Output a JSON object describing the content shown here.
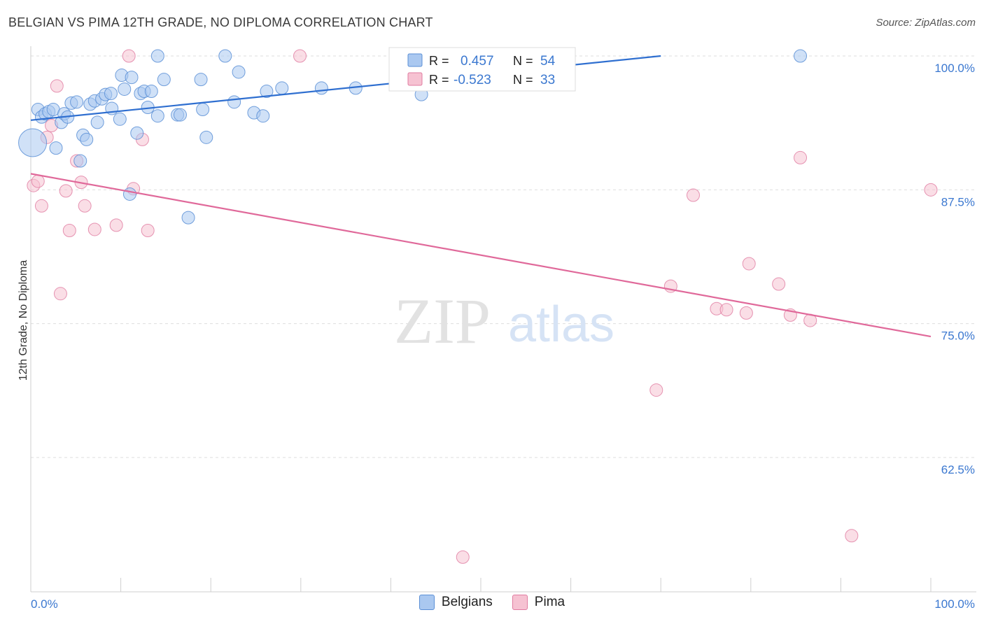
{
  "title": "BELGIAN VS PIMA 12TH GRADE, NO DIPLOMA CORRELATION CHART",
  "source": "Source: ZipAtlas.com",
  "watermark": {
    "zip": "ZIP",
    "atlas": "atlas"
  },
  "colors": {
    "belgians_fill": "#aac8f0",
    "belgians_stroke": "#5b8fd6",
    "belgians_line": "#2f6fd0",
    "pima_fill": "#f6c2d2",
    "pima_stroke": "#e07ba0",
    "pima_line": "#e0699a",
    "tick_text": "#3b78d0",
    "grid": "#dddddd"
  },
  "legend": {
    "rows": [
      {
        "r_label": "R =",
        "r_value": "0.457",
        "n_label": "N =",
        "n_value": "54"
      },
      {
        "r_label": "R =",
        "r_value": "-0.523",
        "n_label": "N =",
        "n_value": "33"
      }
    ]
  },
  "bottom_legend": [
    "Belgians",
    "Pima"
  ],
  "chart_data": {
    "type": "scatter",
    "title": "BELGIAN VS PIMA 12TH GRADE, NO DIPLOMA CORRELATION CHART",
    "xlabel": "",
    "ylabel": "12th Grade, No Diploma",
    "xlim": [
      0,
      100
    ],
    "ylim": [
      52,
      102.5
    ],
    "x_tick_labels": [
      "0.0%",
      "100.0%"
    ],
    "y_ticks": [
      62.5,
      75.0,
      87.5,
      100.0
    ],
    "y_tick_labels": [
      "62.5%",
      "75.0%",
      "87.5%",
      "100.0%"
    ],
    "grid": true,
    "legend_position": "top-center",
    "series": [
      {
        "name": "Belgians",
        "r": 0.457,
        "n": 54,
        "trend": {
          "x": [
            0,
            70
          ],
          "y": [
            94.0,
            100.0
          ]
        },
        "points": [
          {
            "x": 0.2,
            "y": 91.9,
            "big": true
          },
          {
            "x": 0.8,
            "y": 95.0
          },
          {
            "x": 1.2,
            "y": 94.3
          },
          {
            "x": 1.6,
            "y": 94.6
          },
          {
            "x": 2.0,
            "y": 94.8
          },
          {
            "x": 2.5,
            "y": 95.0
          },
          {
            "x": 2.8,
            "y": 91.4
          },
          {
            "x": 3.4,
            "y": 93.8
          },
          {
            "x": 3.7,
            "y": 94.6
          },
          {
            "x": 4.1,
            "y": 94.3
          },
          {
            "x": 4.5,
            "y": 95.6
          },
          {
            "x": 5.1,
            "y": 95.7
          },
          {
            "x": 5.5,
            "y": 90.2
          },
          {
            "x": 5.8,
            "y": 92.6
          },
          {
            "x": 6.2,
            "y": 92.2
          },
          {
            "x": 6.6,
            "y": 95.5
          },
          {
            "x": 7.1,
            "y": 95.8
          },
          {
            "x": 7.4,
            "y": 93.8
          },
          {
            "x": 7.9,
            "y": 96.0
          },
          {
            "x": 8.3,
            "y": 96.4
          },
          {
            "x": 8.9,
            "y": 96.5
          },
          {
            "x": 9.0,
            "y": 95.1
          },
          {
            "x": 9.9,
            "y": 94.1
          },
          {
            "x": 10.1,
            "y": 98.2
          },
          {
            "x": 10.4,
            "y": 96.9
          },
          {
            "x": 11.0,
            "y": 87.1
          },
          {
            "x": 11.2,
            "y": 98.0
          },
          {
            "x": 11.8,
            "y": 92.8
          },
          {
            "x": 12.2,
            "y": 96.5
          },
          {
            "x": 12.6,
            "y": 96.7
          },
          {
            "x": 13.0,
            "y": 95.2
          },
          {
            "x": 13.4,
            "y": 96.7
          },
          {
            "x": 14.1,
            "y": 94.4
          },
          {
            "x": 14.1,
            "y": 100.0
          },
          {
            "x": 14.8,
            "y": 97.8
          },
          {
            "x": 16.3,
            "y": 94.5
          },
          {
            "x": 16.6,
            "y": 94.5
          },
          {
            "x": 17.5,
            "y": 84.9
          },
          {
            "x": 18.9,
            "y": 97.8
          },
          {
            "x": 19.1,
            "y": 95.0
          },
          {
            "x": 19.5,
            "y": 92.4
          },
          {
            "x": 21.6,
            "y": 100.0
          },
          {
            "x": 22.6,
            "y": 95.7
          },
          {
            "x": 23.1,
            "y": 98.5
          },
          {
            "x": 24.8,
            "y": 94.7
          },
          {
            "x": 25.8,
            "y": 94.4
          },
          {
            "x": 26.2,
            "y": 96.7
          },
          {
            "x": 27.9,
            "y": 97.0
          },
          {
            "x": 32.3,
            "y": 97.0
          },
          {
            "x": 36.1,
            "y": 97.0
          },
          {
            "x": 43.4,
            "y": 96.4
          },
          {
            "x": 48.7,
            "y": 100.0
          },
          {
            "x": 51.4,
            "y": 100.0
          },
          {
            "x": 85.5,
            "y": 100.0
          }
        ]
      },
      {
        "name": "Pima",
        "r": -0.523,
        "n": 33,
        "trend": {
          "x": [
            0,
            100
          ],
          "y": [
            89.0,
            73.8
          ]
        },
        "points": [
          {
            "x": 0.3,
            "y": 87.9
          },
          {
            "x": 0.8,
            "y": 88.3
          },
          {
            "x": 1.2,
            "y": 86.0
          },
          {
            "x": 1.8,
            "y": 92.4
          },
          {
            "x": 2.3,
            "y": 93.5
          },
          {
            "x": 2.9,
            "y": 97.2
          },
          {
            "x": 3.3,
            "y": 77.8
          },
          {
            "x": 3.9,
            "y": 87.4
          },
          {
            "x": 4.3,
            "y": 83.7
          },
          {
            "x": 5.1,
            "y": 90.2
          },
          {
            "x": 5.6,
            "y": 88.2
          },
          {
            "x": 6.0,
            "y": 86.0
          },
          {
            "x": 7.1,
            "y": 83.8
          },
          {
            "x": 9.5,
            "y": 84.2
          },
          {
            "x": 10.9,
            "y": 100.0
          },
          {
            "x": 11.4,
            "y": 87.6
          },
          {
            "x": 12.4,
            "y": 92.2
          },
          {
            "x": 13.0,
            "y": 83.7
          },
          {
            "x": 29.9,
            "y": 100.0
          },
          {
            "x": 48.0,
            "y": 53.2
          },
          {
            "x": 69.5,
            "y": 68.8
          },
          {
            "x": 71.1,
            "y": 78.5
          },
          {
            "x": 73.6,
            "y": 87.0
          },
          {
            "x": 76.2,
            "y": 76.4
          },
          {
            "x": 77.3,
            "y": 76.3
          },
          {
            "x": 79.5,
            "y": 76.0
          },
          {
            "x": 79.8,
            "y": 80.6
          },
          {
            "x": 83.1,
            "y": 78.7
          },
          {
            "x": 84.4,
            "y": 75.8
          },
          {
            "x": 85.5,
            "y": 90.5
          },
          {
            "x": 86.6,
            "y": 75.3
          },
          {
            "x": 91.2,
            "y": 55.2
          },
          {
            "x": 100.0,
            "y": 87.5
          }
        ]
      }
    ]
  }
}
